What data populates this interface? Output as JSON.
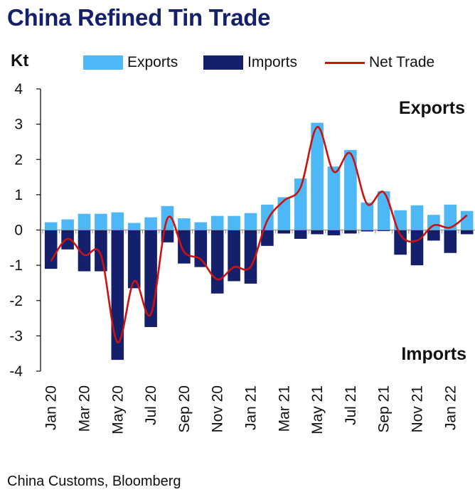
{
  "title": "China Refined Tin Trade",
  "source": "China Customs, Bloomberg",
  "colors": {
    "exports": "#4db8f5",
    "imports": "#14206b",
    "net": "#cc1111",
    "title": "#14206b"
  },
  "chart_data": {
    "type": "bar",
    "ylabel": "Kt",
    "ylim": [
      -4,
      4
    ],
    "yticks": [
      4,
      3,
      2,
      1,
      0,
      -1,
      -2,
      -3,
      -4
    ],
    "grid": false,
    "legend": "top",
    "annotations": {
      "top": "Exports",
      "bottom": "Imports"
    },
    "x": [
      "Jan 20",
      "Feb 20",
      "Mar 20",
      "Apr 20",
      "May 20",
      "Jun 20",
      "Jul 20",
      "Aug 20",
      "Sep 20",
      "Oct 20",
      "Nov 20",
      "Dec 20",
      "Jan 21",
      "Feb 21",
      "Mar 21",
      "Apr 21",
      "May 21",
      "Jun 21",
      "Jul 21",
      "Aug 21",
      "Sep 21",
      "Oct 21",
      "Nov 21",
      "Dec 21",
      "Jan 22",
      "Feb 22"
    ],
    "xticklabels": [
      "Jan 20",
      "Mar 20",
      "May 20",
      "Jul 20",
      "Sep 20",
      "Nov 20",
      "Jan 21",
      "Mar 21",
      "May 21",
      "Jul 21",
      "Sep 21",
      "Nov 21",
      "Jan 22"
    ],
    "series": [
      {
        "name": "Exports",
        "type": "bar",
        "values": [
          0.22,
          0.3,
          0.46,
          0.46,
          0.5,
          0.2,
          0.36,
          0.68,
          0.33,
          0.22,
          0.4,
          0.4,
          0.48,
          0.72,
          0.93,
          1.46,
          3.04,
          1.8,
          2.27,
          0.78,
          1.1,
          0.56,
          0.7,
          0.43,
          0.72,
          0.54
        ]
      },
      {
        "name": "Imports",
        "type": "bar",
        "values": [
          -1.1,
          -0.55,
          -1.17,
          -1.17,
          -3.68,
          -1.65,
          -2.75,
          -0.35,
          -0.95,
          -1.05,
          -1.8,
          -1.45,
          -1.52,
          -0.45,
          -0.1,
          -0.25,
          -0.12,
          -0.15,
          -0.1,
          -0.04,
          -0.03,
          -0.7,
          -1.0,
          -0.3,
          -0.65,
          -0.12
        ]
      },
      {
        "name": "Net Trade",
        "type": "line",
        "values": [
          -0.88,
          -0.25,
          -0.71,
          -0.71,
          -3.18,
          -1.45,
          -2.39,
          0.33,
          -0.62,
          -0.83,
          -1.4,
          -1.05,
          -1.04,
          0.27,
          0.83,
          1.21,
          2.92,
          1.65,
          2.17,
          0.74,
          1.07,
          -0.14,
          -0.3,
          0.13,
          0.07,
          0.42
        ]
      }
    ]
  }
}
